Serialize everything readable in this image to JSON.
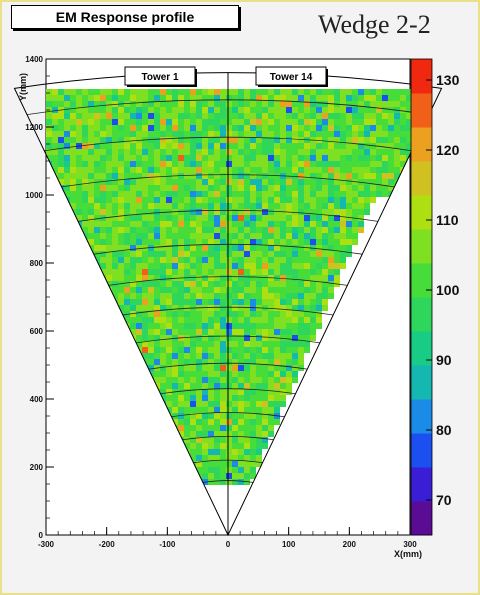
{
  "header": {
    "title": "EM Response profile",
    "wedge": "Wedge 2-2"
  },
  "chart_data": {
    "type": "heatmap",
    "title": "EM Response profile",
    "xlabel": "X(mm)",
    "ylabel": "Y(mm)",
    "xlim": [
      -300,
      300
    ],
    "ylim": [
      0,
      1400
    ],
    "x_ticks": [
      -300,
      -200,
      -100,
      0,
      100,
      200,
      300
    ],
    "x_tick_labels": [
      "-300",
      "-200",
      "-100",
      "0",
      "100",
      "200",
      "300"
    ],
    "y_ticks": [
      0,
      200,
      400,
      600,
      800,
      1000,
      1200,
      1400
    ],
    "y_tick_labels": [
      "0",
      "200",
      "400",
      "600",
      "800",
      "1000",
      "1200",
      "1400"
    ],
    "colorbar": {
      "range": [
        65,
        133
      ],
      "ticks": [
        70,
        80,
        90,
        100,
        110,
        120,
        130
      ],
      "tick_labels": [
        "70",
        "80",
        "90",
        "100",
        "110",
        "120",
        "130"
      ],
      "colors": [
        "#5b0c95",
        "#3a1ed6",
        "#1b4ff0",
        "#1b8be8",
        "#15b8b0",
        "#18cc86",
        "#2ed65c",
        "#46dc3a",
        "#7ee021",
        "#aee011",
        "#d0c020",
        "#eca020",
        "#f06018",
        "#f02810"
      ]
    },
    "annotations": [
      "Tower 1",
      "Tower 14"
    ],
    "wedge": {
      "apex": [
        0,
        0
      ],
      "half_angle_deg": 15,
      "outer_radius": 1360,
      "eta_arc_radii": [
        160,
        220,
        290,
        360,
        430,
        505,
        585,
        670,
        760,
        855,
        955,
        1060,
        1170,
        1280
      ]
    }
  }
}
